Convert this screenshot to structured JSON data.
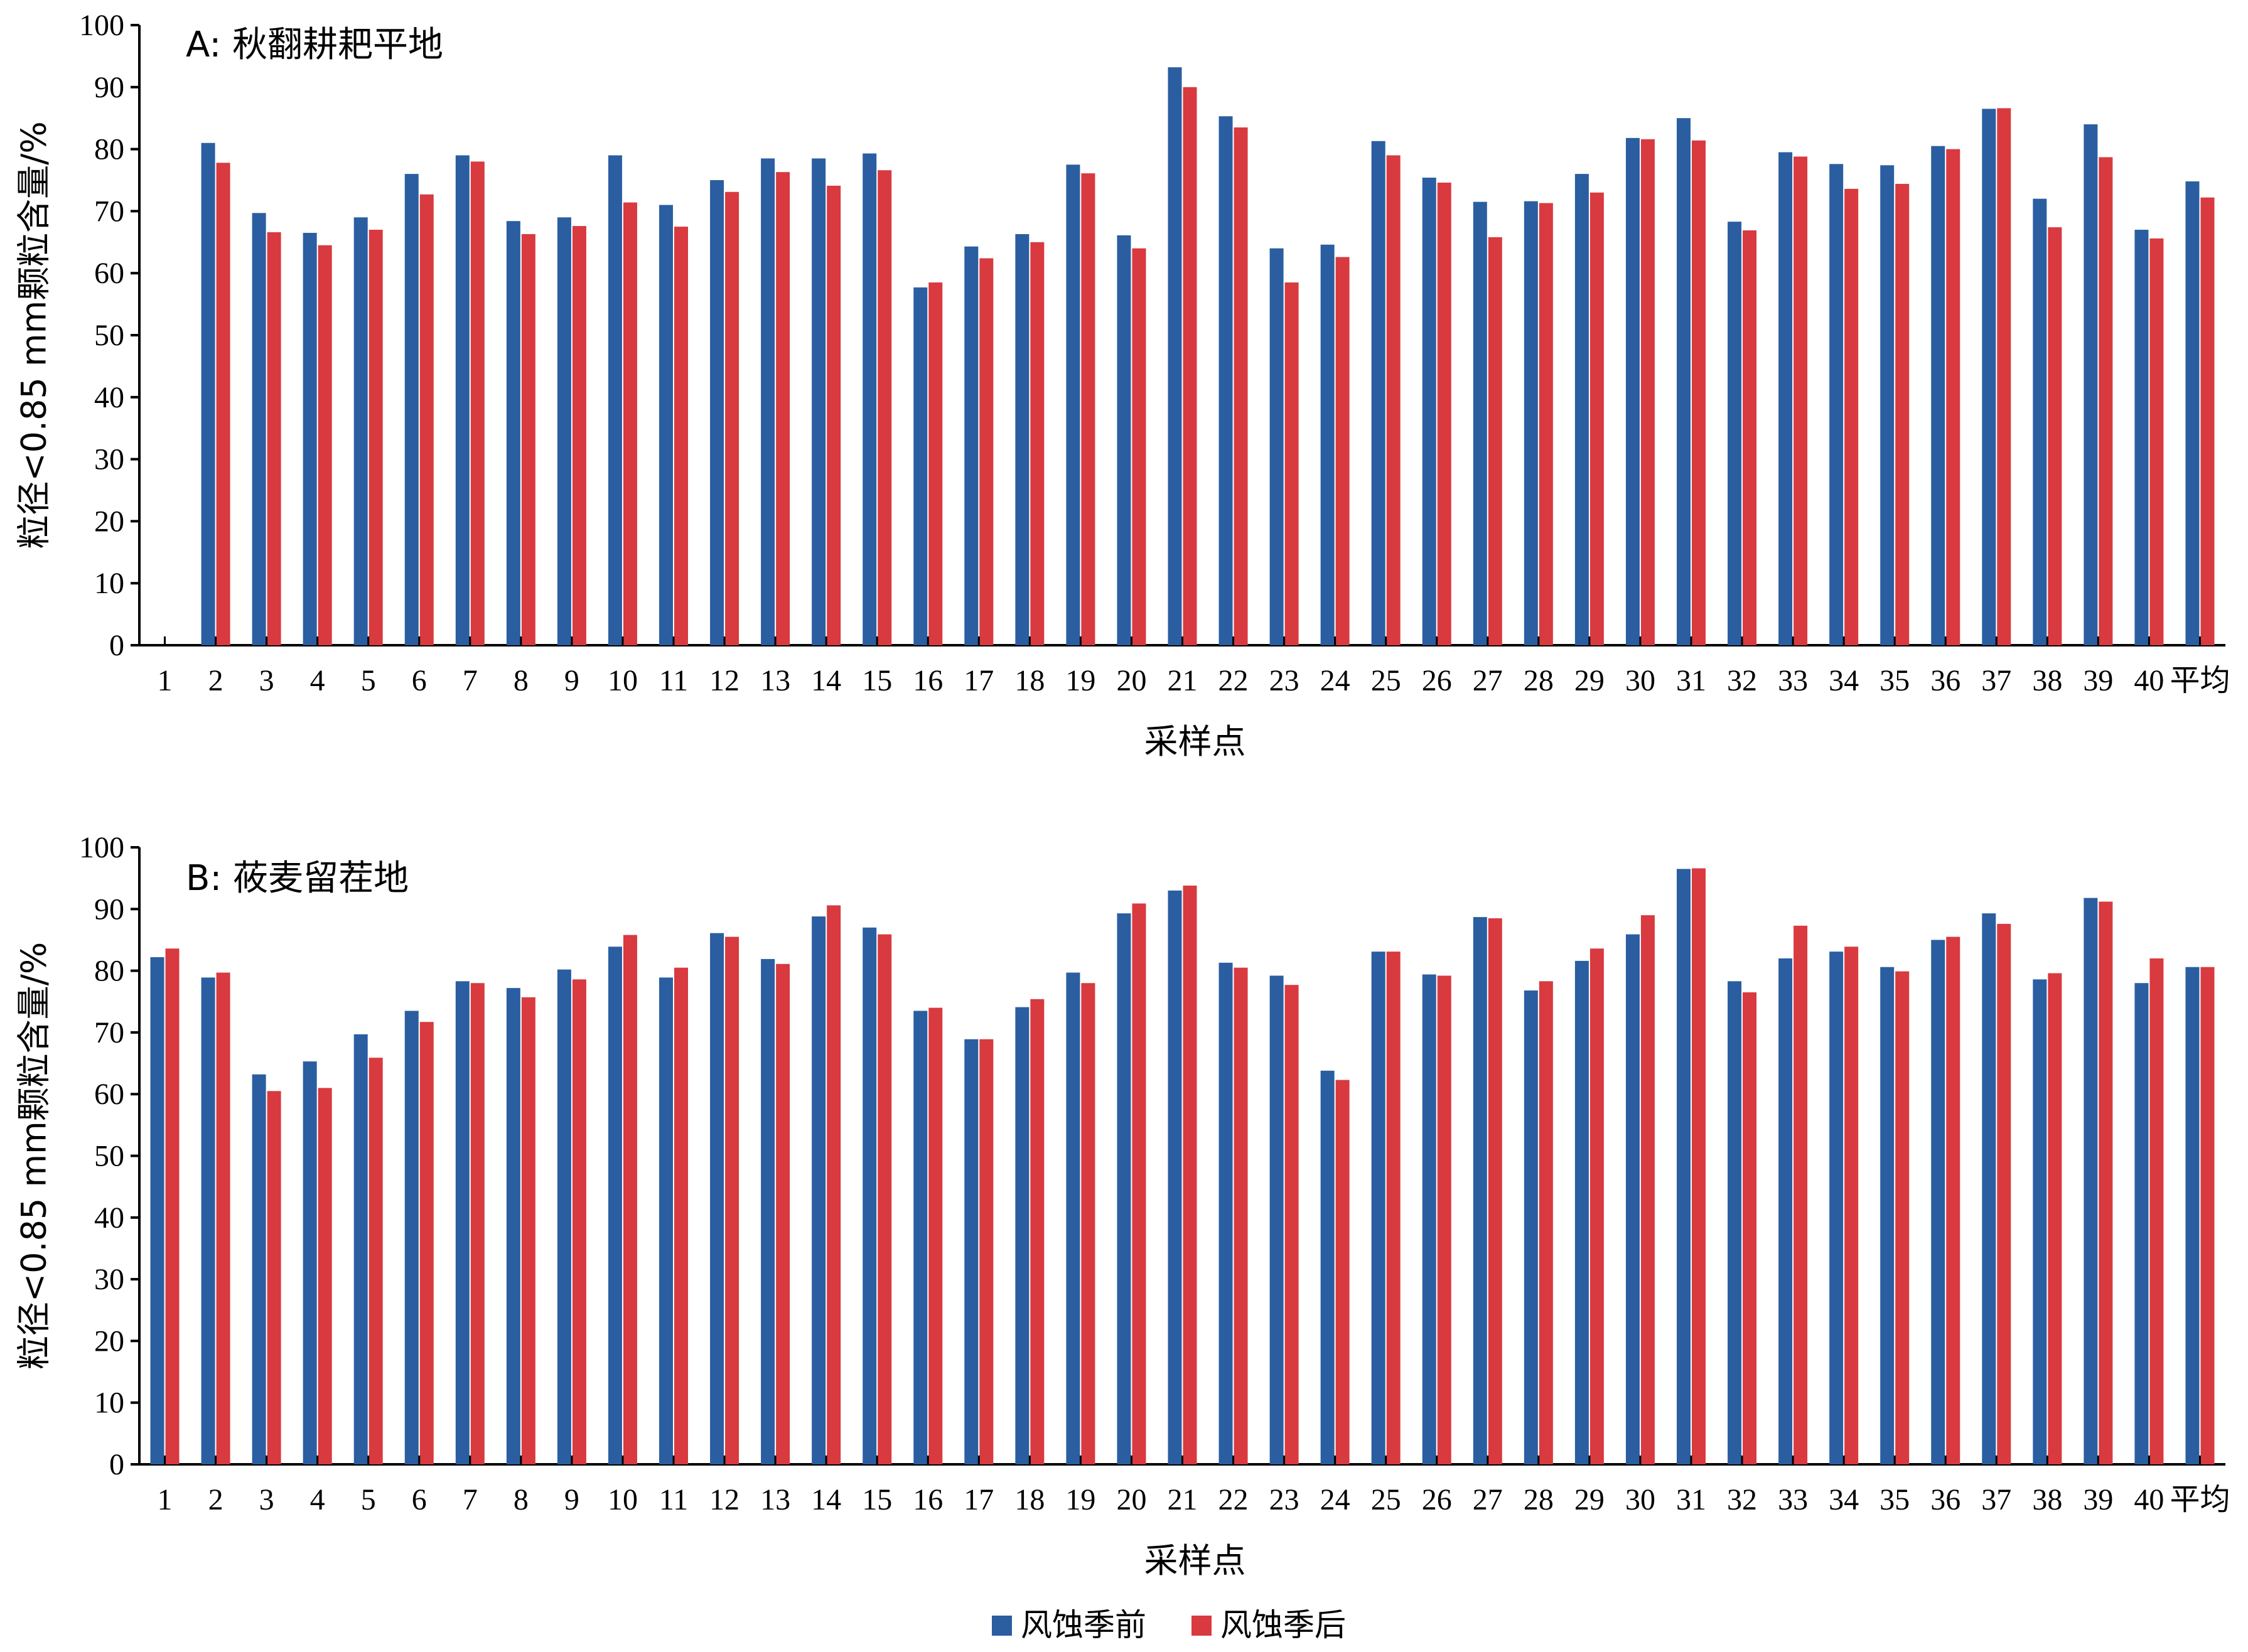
{
  "colors": {
    "before": "#2a5ea1",
    "after": "#d83a3f",
    "axis": "#000000"
  },
  "legend": {
    "items": [
      "风蚀季前",
      "风蚀季后"
    ]
  },
  "chart_data": [
    {
      "type": "bar",
      "title": "A: 秋翻耕耙平地",
      "xlabel": "采样点",
      "ylabel": "粒径<0.85 mm颗粒含量/%",
      "ylim": [
        0,
        100
      ],
      "yticks": [
        0,
        10,
        20,
        30,
        40,
        50,
        60,
        70,
        80,
        90,
        100
      ],
      "categories": [
        "1",
        "2",
        "3",
        "4",
        "5",
        "6",
        "7",
        "8",
        "9",
        "10",
        "11",
        "12",
        "13",
        "14",
        "15",
        "16",
        "17",
        "18",
        "19",
        "20",
        "21",
        "22",
        "23",
        "24",
        "25",
        "26",
        "27",
        "28",
        "29",
        "30",
        "31",
        "32",
        "33",
        "34",
        "35",
        "36",
        "37",
        "38",
        "39",
        "40",
        "平均"
      ],
      "series": [
        {
          "name": "风蚀季前",
          "values": [
            null,
            81,
            69.7,
            66.5,
            69,
            76,
            79,
            68.4,
            69,
            79,
            71,
            75,
            78.5,
            78.5,
            79.3,
            57.7,
            64.3,
            66.3,
            77.5,
            66.1,
            93.2,
            85.3,
            64,
            64.6,
            81.3,
            75.4,
            71.5,
            71.6,
            76,
            81.8,
            85,
            68.3,
            79.5,
            77.6,
            77.4,
            80.5,
            86.5,
            72,
            84,
            67,
            74.8
          ]
        },
        {
          "name": "风蚀季后",
          "values": [
            null,
            77.8,
            66.6,
            64.5,
            67,
            72.7,
            78,
            66.3,
            67.6,
            71.4,
            67.5,
            73.1,
            76.3,
            74.1,
            76.6,
            58.5,
            62.4,
            65,
            76.1,
            64,
            90,
            83.5,
            58.5,
            62.6,
            79,
            74.6,
            65.8,
            71.3,
            73,
            81.6,
            81.4,
            66.9,
            78.8,
            73.6,
            74.4,
            80,
            86.6,
            67.4,
            78.7,
            65.6,
            72.2
          ]
        }
      ]
    },
    {
      "type": "bar",
      "title": "B: 莜麦留茬地",
      "xlabel": "采样点",
      "ylabel": "粒径<0.85 mm颗粒含量/%",
      "ylim": [
        0,
        100
      ],
      "yticks": [
        0,
        10,
        20,
        30,
        40,
        50,
        60,
        70,
        80,
        90,
        100
      ],
      "categories": [
        "1",
        "2",
        "3",
        "4",
        "5",
        "6",
        "7",
        "8",
        "9",
        "10",
        "11",
        "12",
        "13",
        "14",
        "15",
        "16",
        "17",
        "18",
        "19",
        "20",
        "21",
        "22",
        "23",
        "24",
        "25",
        "26",
        "27",
        "28",
        "29",
        "30",
        "31",
        "32",
        "33",
        "34",
        "35",
        "36",
        "37",
        "38",
        "39",
        "40",
        "平均"
      ],
      "series": [
        {
          "name": "风蚀季前",
          "values": [
            82.2,
            78.9,
            63.2,
            65.3,
            69.7,
            73.5,
            78.3,
            77.2,
            80.2,
            83.9,
            78.9,
            86.1,
            81.9,
            88.8,
            87,
            73.5,
            68.9,
            74.1,
            79.7,
            89.3,
            93,
            81.3,
            79.2,
            63.8,
            83.1,
            79.4,
            88.7,
            76.8,
            81.6,
            85.9,
            96.5,
            78.3,
            82,
            83.1,
            80.6,
            85,
            89.3,
            78.6,
            91.8,
            78,
            80.6
          ]
        },
        {
          "name": "风蚀季后",
          "values": [
            83.6,
            79.7,
            60.5,
            61,
            65.9,
            71.7,
            78,
            75.7,
            78.6,
            85.8,
            80.5,
            85.5,
            81.1,
            90.6,
            85.9,
            74,
            68.9,
            75.4,
            78,
            90.9,
            93.8,
            80.5,
            77.7,
            62.3,
            83.1,
            79.2,
            88.5,
            78.3,
            83.6,
            89,
            96.6,
            76.5,
            87.3,
            83.9,
            79.9,
            85.5,
            87.6,
            79.6,
            91.2,
            82,
            80.6
          ]
        }
      ]
    }
  ]
}
